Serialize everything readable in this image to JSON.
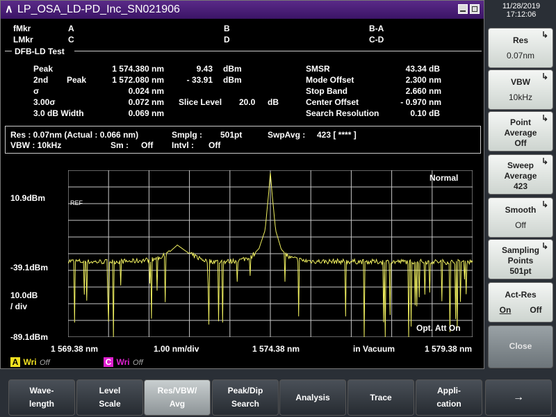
{
  "window": {
    "logo": "∧",
    "title": "LP_OSA_LD-PD_Inc_SN021906"
  },
  "clock": {
    "date": "11/28/2019",
    "time": "17:12:06"
  },
  "markers": {
    "fmkr": "fMkr",
    "lmkr": "LMkr",
    "a": "A",
    "b": "B",
    "ba": "B-A",
    "c": "C",
    "d": "D",
    "cd": "C-D"
  },
  "test": {
    "title": "DFB-LD Test",
    "peak_label": "Peak",
    "peak_wl": "1 574.380 nm",
    "peak_lvl": "9.43",
    "peak_unit": "dBm",
    "second_label": "2nd",
    "second_peak_label": "Peak",
    "second_wl": "1 572.080 nm",
    "second_lvl": "-  33.91",
    "second_unit": "dBm",
    "sigma_label": "σ",
    "sigma_val": "0.024 nm",
    "sigma3_label": "3.00σ",
    "sigma3_val": "0.072 nm",
    "slice_label": "Slice Level",
    "slice_val": "20.0",
    "slice_unit": "dB",
    "width_label": "3.0   dB Width",
    "width_val": "0.069 nm",
    "smsr_label": "SMSR",
    "smsr_val": "43.34 dB",
    "mode_label": "Mode Offset",
    "mode_val": "2.300 nm",
    "stop_label": "Stop Band",
    "stop_val": "2.660 nm",
    "center_label": "Center Offset",
    "center_val": "-  0.970 nm",
    "search_label": "Search Resolution",
    "search_val": "0.10  dB"
  },
  "params": {
    "res": "Res :  0.07nm (Actual :  0.066 nm)",
    "smplg_label": "Smplg :",
    "smplg_val": "501pt",
    "swpavg_label": "SwpAvg :",
    "swpavg_val": "423 [      ****  ]",
    "vbw": "VBW :   10kHz",
    "sm_label": "Sm :",
    "sm_val": "Off",
    "intvl_label": "Intvl :",
    "intvl_val": "Off"
  },
  "plot": {
    "mode": "Normal",
    "ref": "REF",
    "y_top": "10.9dBm",
    "y_mid": "-39.1dBm",
    "y_scale1": "10.0dB",
    "y_scale2": "/ div",
    "y_bot": "-89.1dBm",
    "x_start": "1 569.38 nm",
    "x_div": "1.00 nm/div",
    "x_center": "1 574.38 nm",
    "x_medium": "in Vacuum",
    "x_stop": "1 579.38 nm",
    "att": "Opt. Att On"
  },
  "traces": {
    "a_letter": "A",
    "a_mode": "Wri",
    "a_state": "Off",
    "c_letter": "C",
    "c_mode": "Wri",
    "c_state": "Off"
  },
  "softkeys": [
    {
      "l1": "Res",
      "l2": "0.07nm"
    },
    {
      "l1": "VBW",
      "l2": "10kHz"
    },
    {
      "l1": "Point",
      "l2": "Average",
      "l3": "Off"
    },
    {
      "l1": "Sweep",
      "l2": "Average",
      "l3": "423"
    },
    {
      "l1": "Smooth",
      "l2": "Off"
    },
    {
      "l1": "Sampling",
      "l2": "Points",
      "l3": "501pt"
    },
    {
      "l1": "Act-Res",
      "on": "On",
      "off": "Off"
    },
    {
      "l1": "Close"
    }
  ],
  "bottom_menu": [
    {
      "l1": "Wave-",
      "l2": "length"
    },
    {
      "l1": "Level",
      "l2": "Scale"
    },
    {
      "l1": "Res/VBW/",
      "l2": "Avg"
    },
    {
      "l1": "Peak/Dip",
      "l2": "Search"
    },
    {
      "l1": "Analysis"
    },
    {
      "l1": "Trace"
    },
    {
      "l1": "Appli-",
      "l2": "cation"
    },
    {
      "l1": "→"
    }
  ],
  "colors": {
    "trace": "#f0f060",
    "grid": "#c8c8c8",
    "title_bg": "#4a1f78",
    "marker_a": "#f0e020",
    "marker_c": "#e020d0"
  },
  "chart_data": {
    "type": "line",
    "xlabel": "",
    "ylabel": "",
    "xlim": [
      1569.38,
      1579.38
    ],
    "ylim": [
      -89.1,
      10.9
    ],
    "grid": true,
    "series": [
      {
        "x": [
          1569.38,
          1570.0,
          1570.5,
          1571.0,
          1571.5,
          1571.8,
          1572.08,
          1572.4,
          1572.8,
          1573.2,
          1573.6,
          1573.9,
          1574.1,
          1574.25,
          1574.33,
          1574.38,
          1574.43,
          1574.51,
          1574.65,
          1574.85,
          1575.2,
          1575.6,
          1576.0,
          1577.0,
          1578.0,
          1579.0,
          1579.38
        ],
        "y": [
          -43.5,
          -44.0,
          -43.8,
          -43.6,
          -42.5,
          -40.0,
          -33.91,
          -39.5,
          -43.5,
          -44.0,
          -43.2,
          -41.0,
          -36.0,
          -25.0,
          -5.0,
          9.43,
          -5.0,
          -25.0,
          -36.5,
          -41.5,
          -43.3,
          -43.8,
          -43.7,
          -44.0,
          -43.9,
          -44.1,
          -43.8
        ]
      }
    ]
  }
}
